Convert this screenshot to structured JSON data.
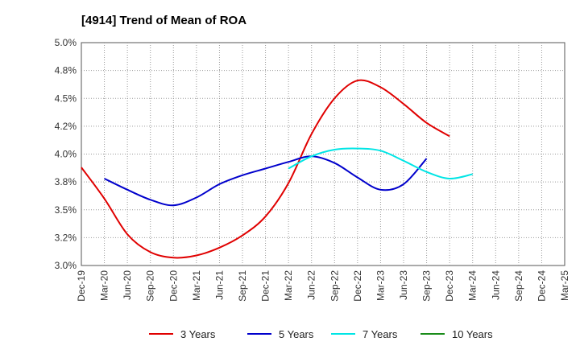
{
  "chart_data": {
    "type": "line",
    "title": "[4914]  Trend of Mean of ROA",
    "xlabel": "",
    "ylabel": "",
    "ylim": [
      3.0,
      5.0
    ],
    "y_ticks": [
      "3.0%",
      "3.2%",
      "3.5%",
      "3.8%",
      "4.0%",
      "4.2%",
      "4.5%",
      "4.8%",
      "5.0%"
    ],
    "x_ticks": [
      "Dec-19",
      "Mar-20",
      "Jun-20",
      "Sep-20",
      "Dec-20",
      "Mar-21",
      "Jun-21",
      "Sep-21",
      "Dec-21",
      "Mar-22",
      "Jun-22",
      "Sep-22",
      "Dec-22",
      "Mar-23",
      "Jun-23",
      "Sep-23",
      "Dec-23",
      "Mar-24",
      "Jun-24",
      "Sep-24",
      "Dec-24",
      "Mar-25"
    ],
    "grid": true,
    "legend_position": "bottom",
    "series": [
      {
        "name": "3 Years",
        "color": "#e00000",
        "start_index": 0,
        "values": [
          3.88,
          3.6,
          3.28,
          3.12,
          3.07,
          3.09,
          3.16,
          3.27,
          3.44,
          3.74,
          4.18,
          4.5,
          4.66,
          4.6,
          4.45,
          4.28,
          4.16
        ]
      },
      {
        "name": "5 Years",
        "color": "#0000cc",
        "start_index": 1,
        "values": [
          3.78,
          3.68,
          3.59,
          3.54,
          3.61,
          3.73,
          3.81,
          3.87,
          3.93,
          3.98,
          3.92,
          3.79,
          3.68,
          3.73,
          3.96
        ]
      },
      {
        "name": "7 Years",
        "color": "#00e5e5",
        "start_index": 9,
        "values": [
          3.87,
          3.98,
          4.04,
          4.05,
          4.03,
          3.94,
          3.84,
          3.78,
          3.82
        ]
      },
      {
        "name": "10 Years",
        "color": "#1a8c1a",
        "start_index": 0,
        "values": []
      }
    ]
  }
}
